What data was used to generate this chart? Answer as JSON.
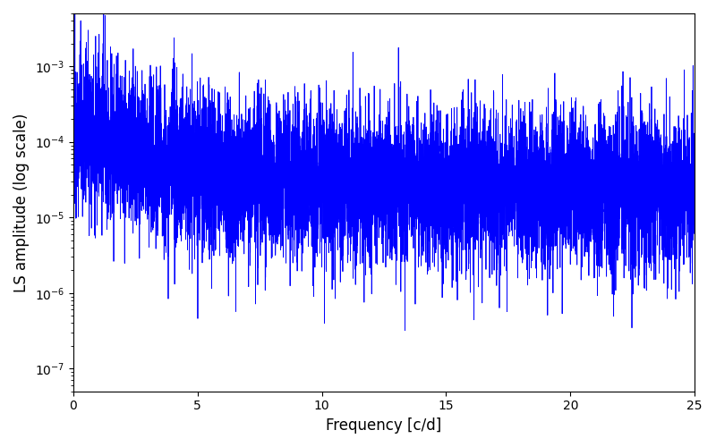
{
  "title": "",
  "xlabel": "Frequency [c/d]",
  "ylabel": "LS amplitude (log scale)",
  "xlim": [
    0,
    25
  ],
  "ylim": [
    5e-08,
    0.005
  ],
  "yscale": "log",
  "line_color": "#0000ff",
  "line_width": 0.6,
  "n_points": 8000,
  "freq_max": 25.0,
  "seed": 12345,
  "base_level": 0.00015,
  "floor_level": 2e-05,
  "decay_scale": 1.5,
  "decay_power": 1.5,
  "noise_std": 1.2,
  "clip_min": 3e-08,
  "clip_max": 0.005,
  "background_color": "#ffffff",
  "figsize": [
    8.0,
    5.0
  ],
  "dpi": 100
}
